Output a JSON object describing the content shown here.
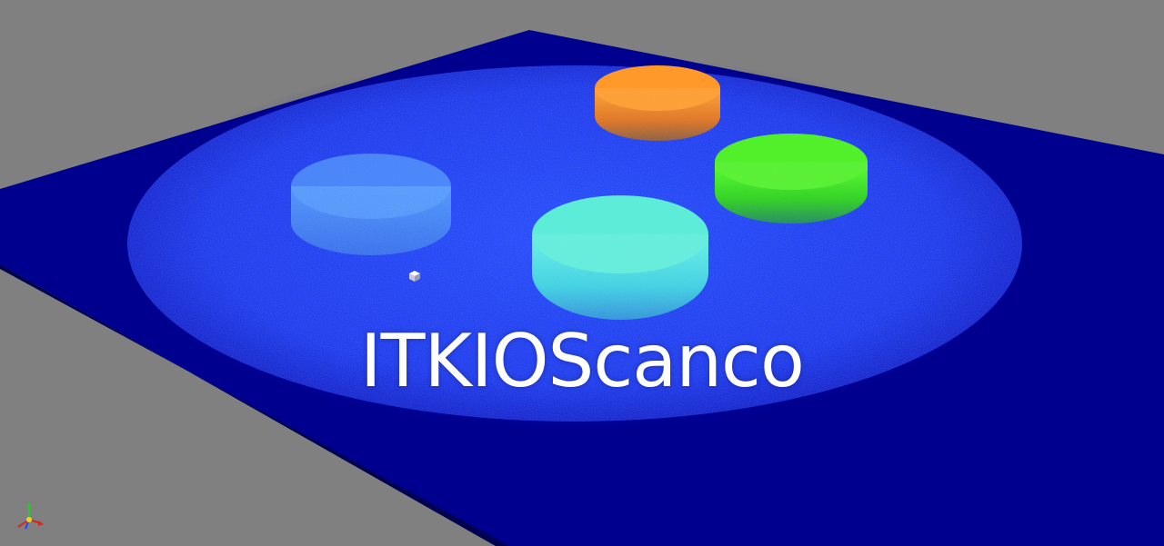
{
  "overlay": {
    "title": "ITKIOScanco"
  },
  "viewport": {
    "background": "#808080",
    "plane_color": "#00008b",
    "scan_disk_color": "#1530ff"
  },
  "cylinders": [
    {
      "name": "cylinder-dim-cyan",
      "color": "#4aa6ff"
    },
    {
      "name": "cylinder-cyan",
      "color": "#3fe0d8"
    },
    {
      "name": "cylinder-orange",
      "color": "#ff8a1e"
    },
    {
      "name": "cylinder-green",
      "color": "#33e01a"
    }
  ],
  "icons": {
    "orientation_widget": "orientation-axes-icon",
    "center_marker": "rotation-center-icon"
  }
}
